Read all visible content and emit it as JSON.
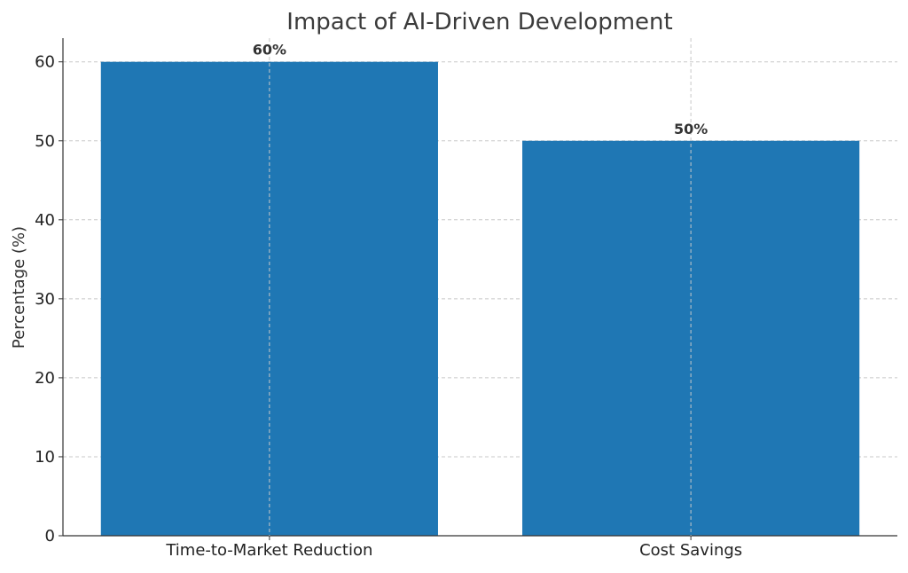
{
  "chart_data": {
    "type": "bar",
    "title": "Impact of AI-Driven Development",
    "xlabel": "",
    "ylabel": "Percentage (%)",
    "categories": [
      "Time-to-Market Reduction",
      "Cost Savings"
    ],
    "values": [
      60,
      50
    ],
    "data_labels": [
      "60%",
      "50%"
    ],
    "ylim": [
      0,
      63
    ],
    "yticks": [
      0,
      10,
      20,
      30,
      40,
      50,
      60
    ],
    "ytick_labels": [
      "0",
      "10",
      "20",
      "30",
      "40",
      "50",
      "60"
    ],
    "grid": true,
    "bar_color": "#1f77b4"
  }
}
